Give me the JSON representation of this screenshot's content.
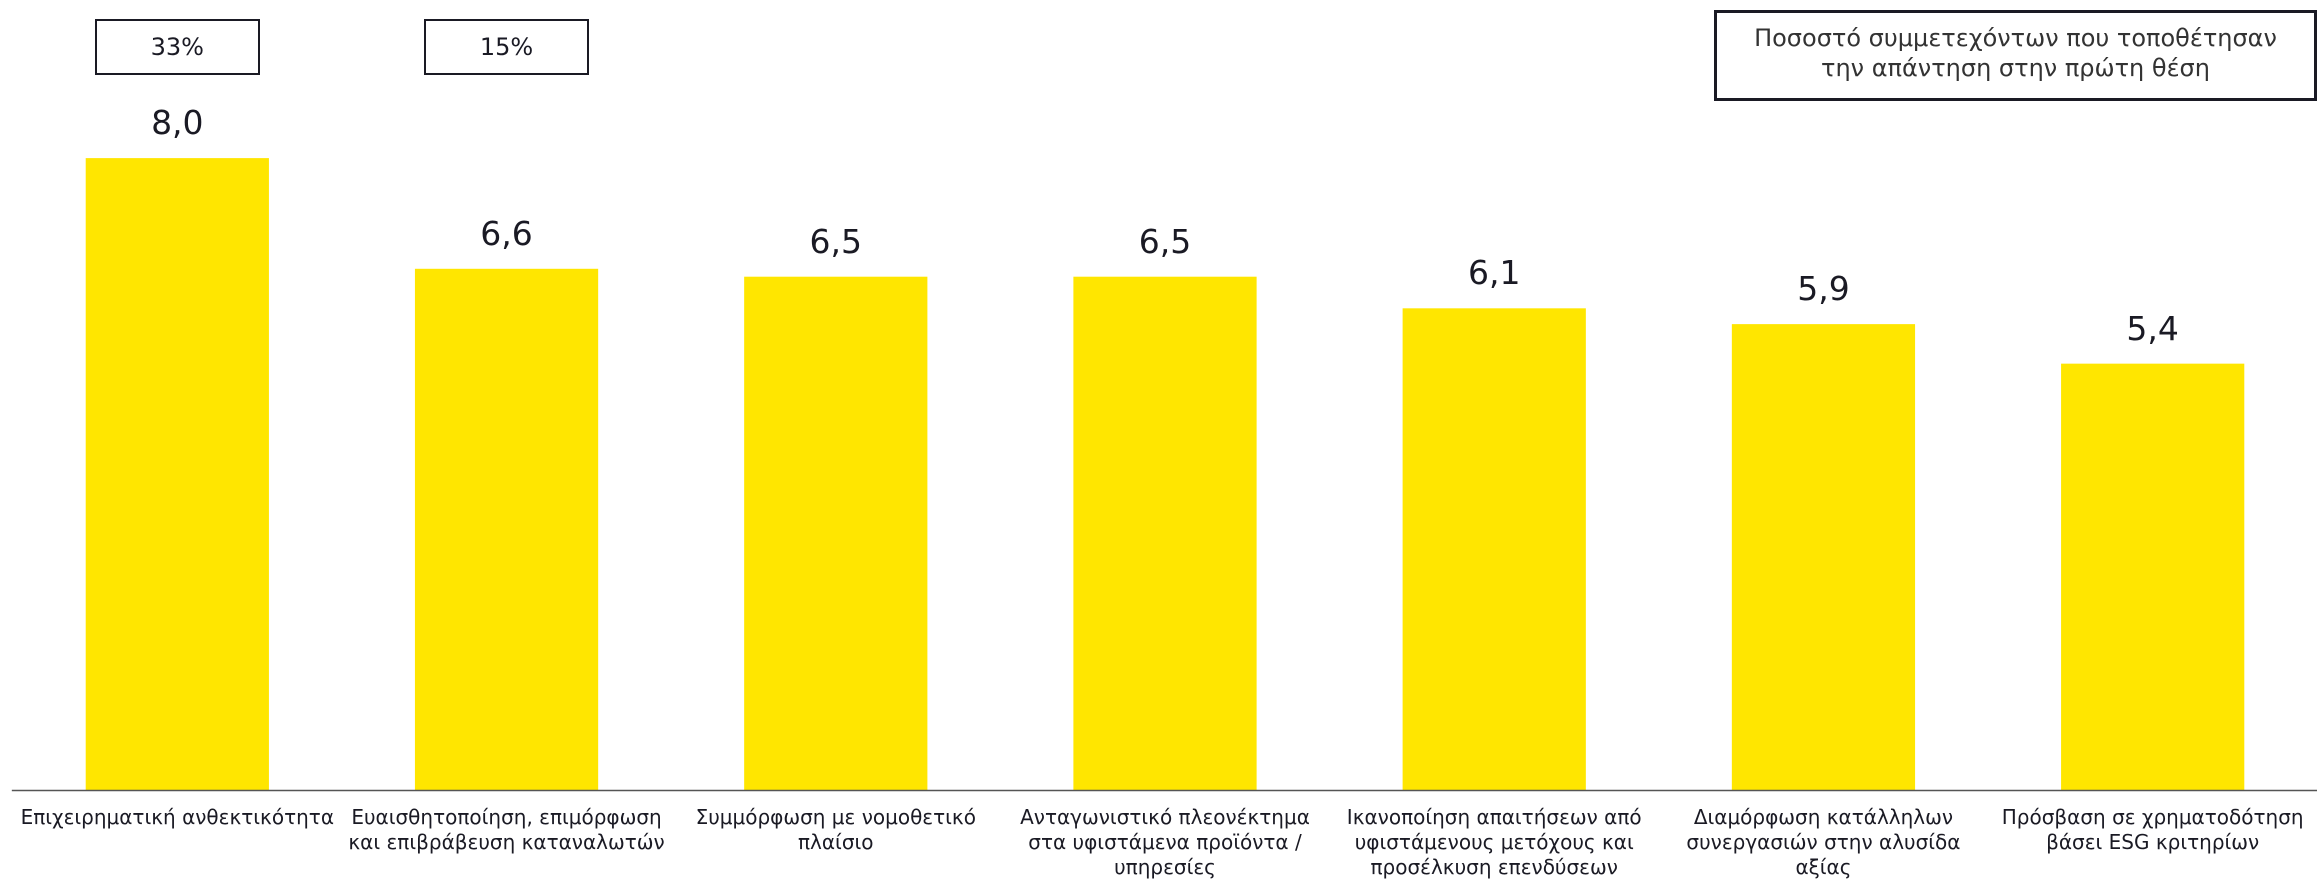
{
  "chart_data": {
    "type": "bar",
    "categories": [
      "Επιχειρηματική ανθεκτικότητα",
      "Ευαισθητοποίηση, επιμόρφωση και επιβράβευση καταναλωτών",
      "Συμμόρφωση με νομοθετικό πλαίσιο",
      "Ανταγωνιστικό πλεονέκτημα στα υφιστάμενα προϊόντα / υπηρεσίες",
      "Ικανοποίηση απαιτήσεων από υφιστάμενους μετόχους και προσέλκυση επενδύσεων",
      "Διαμόρφωση κατάλληλων συνεργασιών στην αλυσίδα αξίας",
      "Πρόσβαση σε χρηματοδότηση βάσει ESG κριτηρίων"
    ],
    "values": [
      8.0,
      6.6,
      6.5,
      6.5,
      6.1,
      5.9,
      5.4
    ],
    "value_labels": [
      "8,0",
      "6,6",
      "6,5",
      "6,5",
      "6,1",
      "5,9",
      "5,4"
    ],
    "color": "#ffe600",
    "ylim": [
      0,
      10
    ],
    "first_place": {
      "label": "Ποσοστό συμμετεχόντων που τοποθέτησαν την απάντηση στην πρώτη θέση",
      "values": [
        33,
        15
      ],
      "value_labels": [
        "33%",
        "15%"
      ]
    }
  }
}
